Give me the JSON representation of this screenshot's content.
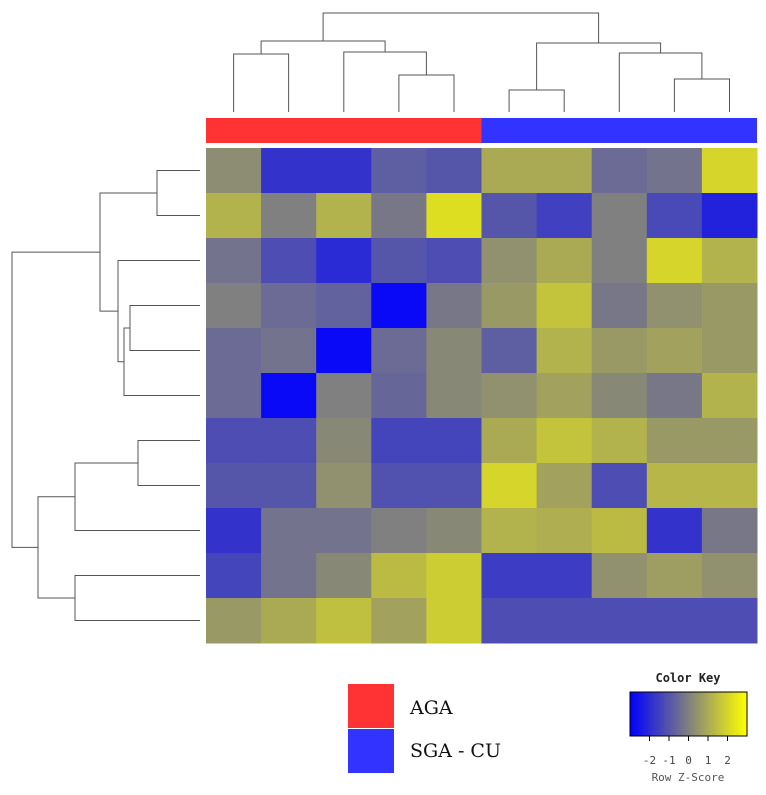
{
  "chart_data": {
    "type": "heatmap",
    "columns": 10,
    "column_groups": [
      {
        "label": "AGA",
        "color": "#ff3333",
        "count": 5
      },
      {
        "label": "SGA - CU",
        "color": "#3333ff",
        "count": 5
      }
    ],
    "values": [
      [
        0.3,
        -1.8,
        -1.8,
        -0.8,
        -1.0,
        1.0,
        1.0,
        -0.5,
        -0.3,
        2.0
      ],
      [
        1.2,
        0.0,
        1.2,
        -0.2,
        2.2,
        -1.0,
        -1.5,
        0.0,
        -1.3,
        -2.2
      ],
      [
        -0.3,
        -1.2,
        -2.0,
        -1.0,
        -1.2,
        0.4,
        1.0,
        0.0,
        2.0,
        1.2
      ],
      [
        0.0,
        -0.5,
        -0.7,
        -2.8,
        -0.2,
        0.6,
        1.6,
        -0.2,
        0.4,
        0.6
      ],
      [
        -0.5,
        -0.3,
        -2.8,
        -0.5,
        0.2,
        -0.8,
        1.2,
        0.6,
        0.8,
        0.6
      ],
      [
        -0.5,
        -2.8,
        0.0,
        -0.6,
        0.2,
        0.4,
        0.8,
        0.2,
        -0.2,
        1.2
      ],
      [
        -1.2,
        -1.2,
        0.2,
        -1.4,
        -1.4,
        1.0,
        1.6,
        1.2,
        0.6,
        0.6
      ],
      [
        -1.0,
        -1.0,
        0.4,
        -1.1,
        -1.1,
        2.0,
        0.8,
        -1.2,
        1.3,
        1.3
      ],
      [
        -1.8,
        -0.3,
        -0.3,
        0.0,
        0.2,
        1.2,
        1.1,
        1.4,
        -1.8,
        -0.2
      ],
      [
        -1.4,
        -0.3,
        0.2,
        1.4,
        1.8,
        -1.6,
        -1.6,
        0.4,
        0.7,
        0.4
      ],
      [
        0.6,
        1.0,
        1.5,
        0.8,
        1.8,
        -1.2,
        -1.2,
        -1.2,
        -1.2,
        -1.2
      ]
    ],
    "color_scale": {
      "low": "#0000ff",
      "mid": "#808080",
      "high": "#ffff00",
      "range": [
        -3,
        3
      ]
    },
    "color_key": {
      "title": "Color Key",
      "ticks": [
        "-2",
        "-1",
        "0",
        "1",
        "2"
      ],
      "xlabel": "Row Z-Score"
    }
  }
}
